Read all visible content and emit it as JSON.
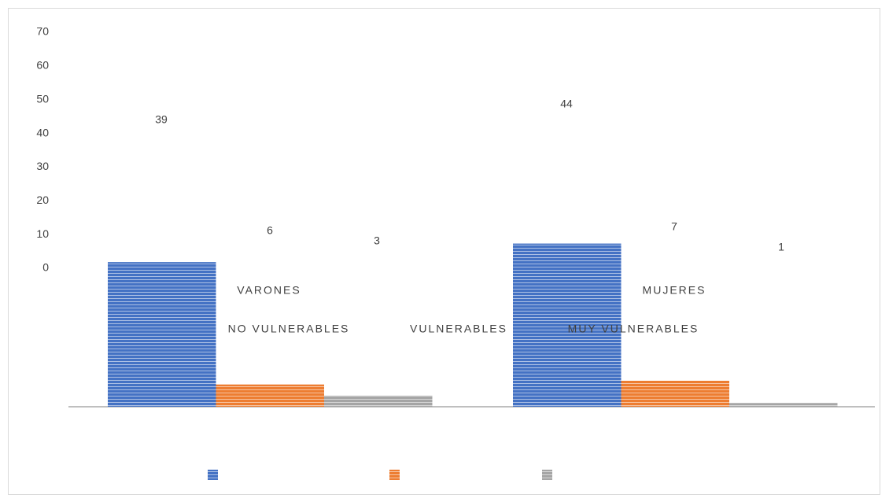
{
  "chart_data": {
    "type": "bar",
    "categories": [
      "VARONES",
      "MUJERES"
    ],
    "series": [
      {
        "name": "NO VULNERABLES",
        "color": "#4472c4",
        "values": [
          39,
          44
        ]
      },
      {
        "name": "VULNERABLES",
        "color": "#ed7d31",
        "values": [
          6,
          7
        ]
      },
      {
        "name": "MUY VULNERABLES",
        "color": "#a5a5a5",
        "values": [
          3,
          1
        ]
      }
    ],
    "ylim": [
      0,
      70
    ],
    "yticks": [
      0,
      10,
      20,
      30,
      40,
      50,
      60,
      70
    ]
  }
}
